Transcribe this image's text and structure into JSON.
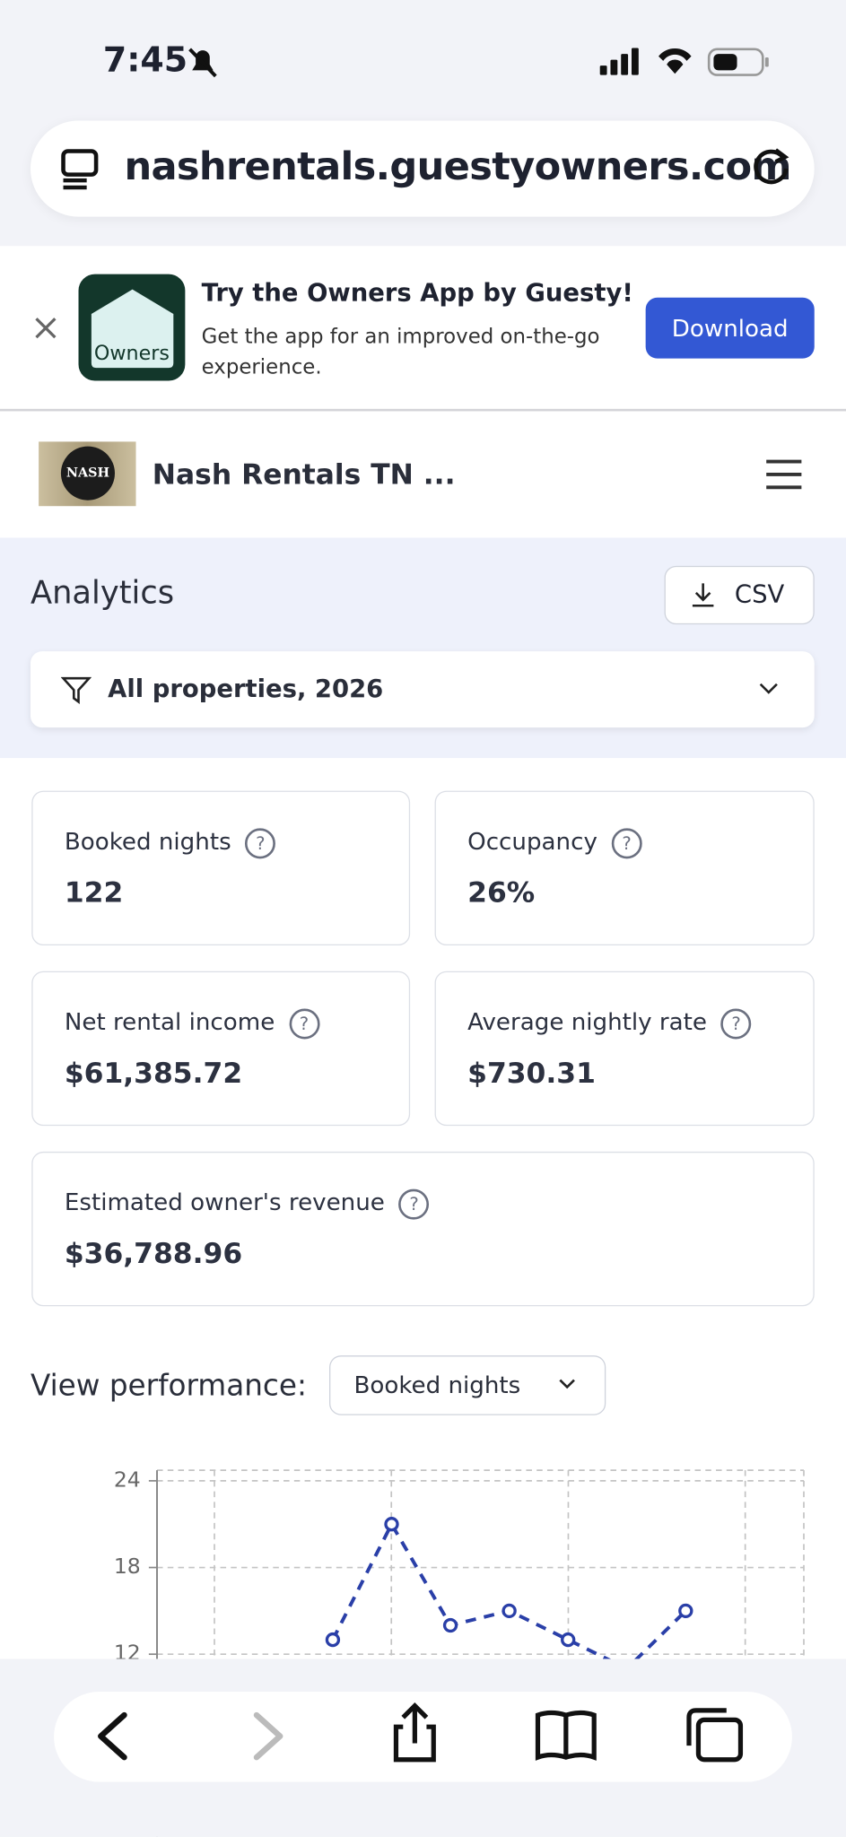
{
  "status_bar": {
    "time": "7:45"
  },
  "browser": {
    "url": "nashrentals.guestyowners.com"
  },
  "banner": {
    "title": "Try the Owners App by Guesty!",
    "subtitle": "Get the app for an improved on-the-go experience.",
    "app_label": "Owners",
    "button": "Download"
  },
  "header": {
    "logo_text": "NASH",
    "site_name": "Nash Rentals TN ..."
  },
  "analytics": {
    "title": "Analytics",
    "csv": "CSV",
    "filter": "All properties, 2026"
  },
  "metrics": [
    {
      "label": "Booked nights",
      "value": "122"
    },
    {
      "label": "Occupancy",
      "value": "26%"
    },
    {
      "label": "Net rental income",
      "value": "$61,385.72"
    },
    {
      "label": "Average nightly rate",
      "value": "$730.31"
    },
    {
      "label": "Estimated owner's revenue",
      "value": "$36,788.96"
    }
  ],
  "performance": {
    "label": "View performance:",
    "selected": "Booked nights"
  },
  "chart_data": {
    "type": "line",
    "ylim": [
      0,
      24
    ],
    "yticks": [
      12,
      18,
      24
    ],
    "grid": true,
    "series": [
      {
        "color": "#2a3fa8",
        "values": [
          13,
          21,
          14,
          15,
          13,
          11,
          15
        ]
      }
    ]
  }
}
